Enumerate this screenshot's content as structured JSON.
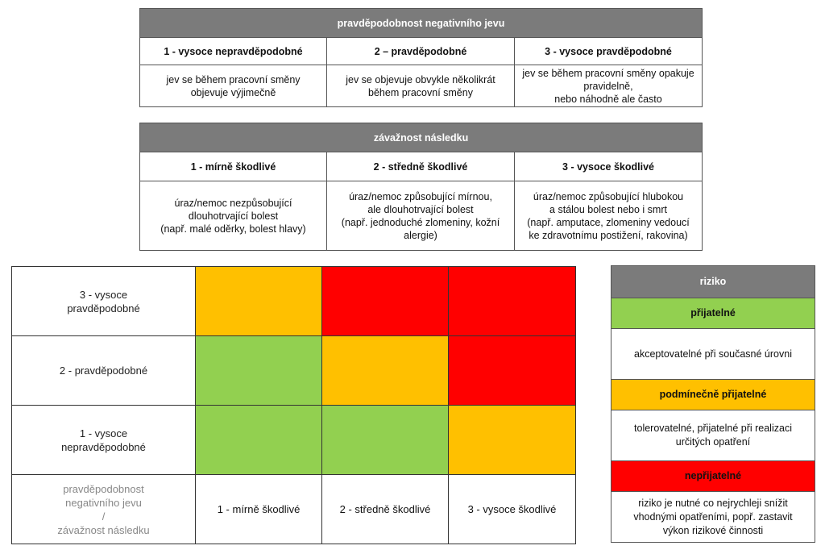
{
  "probability": {
    "title": "pravděpodobnost negativního jevu",
    "levels": [
      {
        "label": "1 - vysoce nepravděpodobné",
        "desc": "jev se během pracovní směny\nobjevuje výjimečně"
      },
      {
        "label": "2 – pravděpodobné",
        "desc": "jev se objevuje obvykle několikrát\nběhem pracovní směny"
      },
      {
        "label": "3 - vysoce pravděpodobné",
        "desc": "jev se během pracovní směny opakuje\npravidelně,\nnebo náhodně ale často"
      }
    ]
  },
  "severity": {
    "title": "závažnost následku",
    "levels": [
      {
        "label": "1 - mírně škodlivé",
        "desc": "úraz/nemoc nezpůsobující\ndlouhotrvající bolest\n(např. malé oděrky, bolest hlavy)"
      },
      {
        "label": "2 - středně škodlivé",
        "desc": "úraz/nemoc způsobující mírnou,\nale dlouhotrvající bolest\n(např. jednoduché zlomeniny, kožní\nalergie)"
      },
      {
        "label": "3 - vysoce škodlivé",
        "desc": "úraz/nemoc způsobující hlubokou\na stálou bolest nebo i smrt\n(např. amputace, zlomeniny vedoucí\nke zdravotnímu postižení, rakovina)"
      }
    ]
  },
  "matrix": {
    "rows": [
      {
        "label": "3 - vysoce\npravděpodobné",
        "cells": [
          "orange",
          "red",
          "red"
        ]
      },
      {
        "label": "2 - pravděpodobné",
        "cells": [
          "green",
          "orange",
          "red"
        ]
      },
      {
        "label": "1 - vysoce\nnepravděpodobné",
        "cells": [
          "green",
          "green",
          "orange"
        ]
      }
    ],
    "corner_label": "pravděpodobnost\nnegativního jevu\n/\nzávažnost následku",
    "columns": [
      "1 - mírně škodlivé",
      "2 - středně škodlivé",
      "3 - vysoce škodlivé"
    ]
  },
  "legend": {
    "title": "riziko",
    "items": [
      {
        "label": "přijatelné",
        "desc": "akceptovatelné  při současné úrovni",
        "color": "#92d050"
      },
      {
        "label": "podmínečně  přijatelné",
        "desc": "tolerovatelné,  přijatelné při realizaci\nurčitých opatření",
        "color": "#ffc000"
      },
      {
        "label": "nepřijatelné",
        "desc": "riziko je nutné co nejrychleji  snížit\nvhodnými opatřeními,  popř. zastavit\nvýkon rizikové činnosti",
        "color": "#ff0000"
      }
    ]
  }
}
